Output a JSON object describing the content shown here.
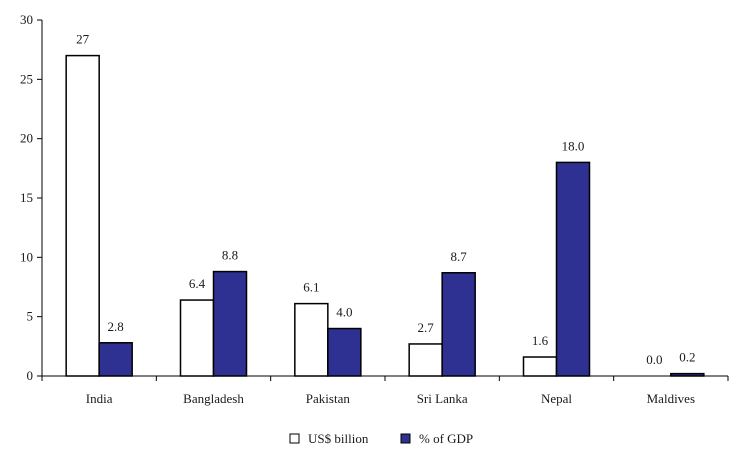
{
  "chart_data": {
    "type": "bar",
    "categories": [
      "India",
      "Bangladesh",
      "Pakistan",
      "Sri Lanka",
      "Nepal",
      "Maldives"
    ],
    "series": [
      {
        "name": "US$ billion",
        "values": [
          27,
          6.4,
          6.1,
          2.7,
          1.6,
          0.0
        ],
        "labels": [
          "27",
          "6.4",
          "6.1",
          "2.7",
          "1.6",
          "0.0"
        ],
        "color": "#ffffff",
        "stroke": "#000000"
      },
      {
        "name": "% of GDP",
        "values": [
          2.8,
          8.8,
          4.0,
          8.7,
          18.0,
          0.2
        ],
        "labels": [
          "2.8",
          "8.8",
          "4.0",
          "8.7",
          "18.0",
          "0.2"
        ],
        "color": "#2e3192",
        "stroke": "#000000"
      }
    ],
    "yticks": [
      "0",
      "5",
      "10",
      "15",
      "20",
      "25",
      "30"
    ],
    "ylim": [
      0,
      30
    ],
    "grid": false,
    "legend": "bottom-center"
  }
}
